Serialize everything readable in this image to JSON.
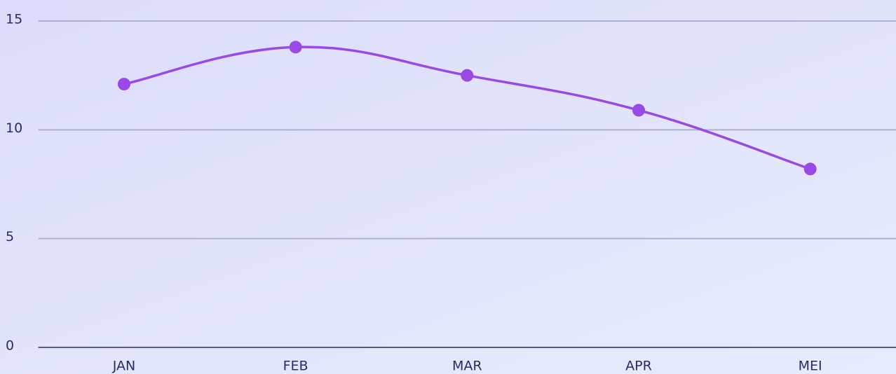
{
  "chart_data": {
    "type": "line",
    "categories": [
      "JAN",
      "FEB",
      "MAR",
      "APR",
      "MEI"
    ],
    "series": [
      {
        "color": "#9a48e6",
        "values": [
          12.1,
          13.8,
          12.5,
          10.9,
          8.2
        ]
      }
    ],
    "ylim": [
      0,
      15
    ],
    "yticks": [
      0,
      5,
      10,
      15
    ],
    "grid": true
  }
}
